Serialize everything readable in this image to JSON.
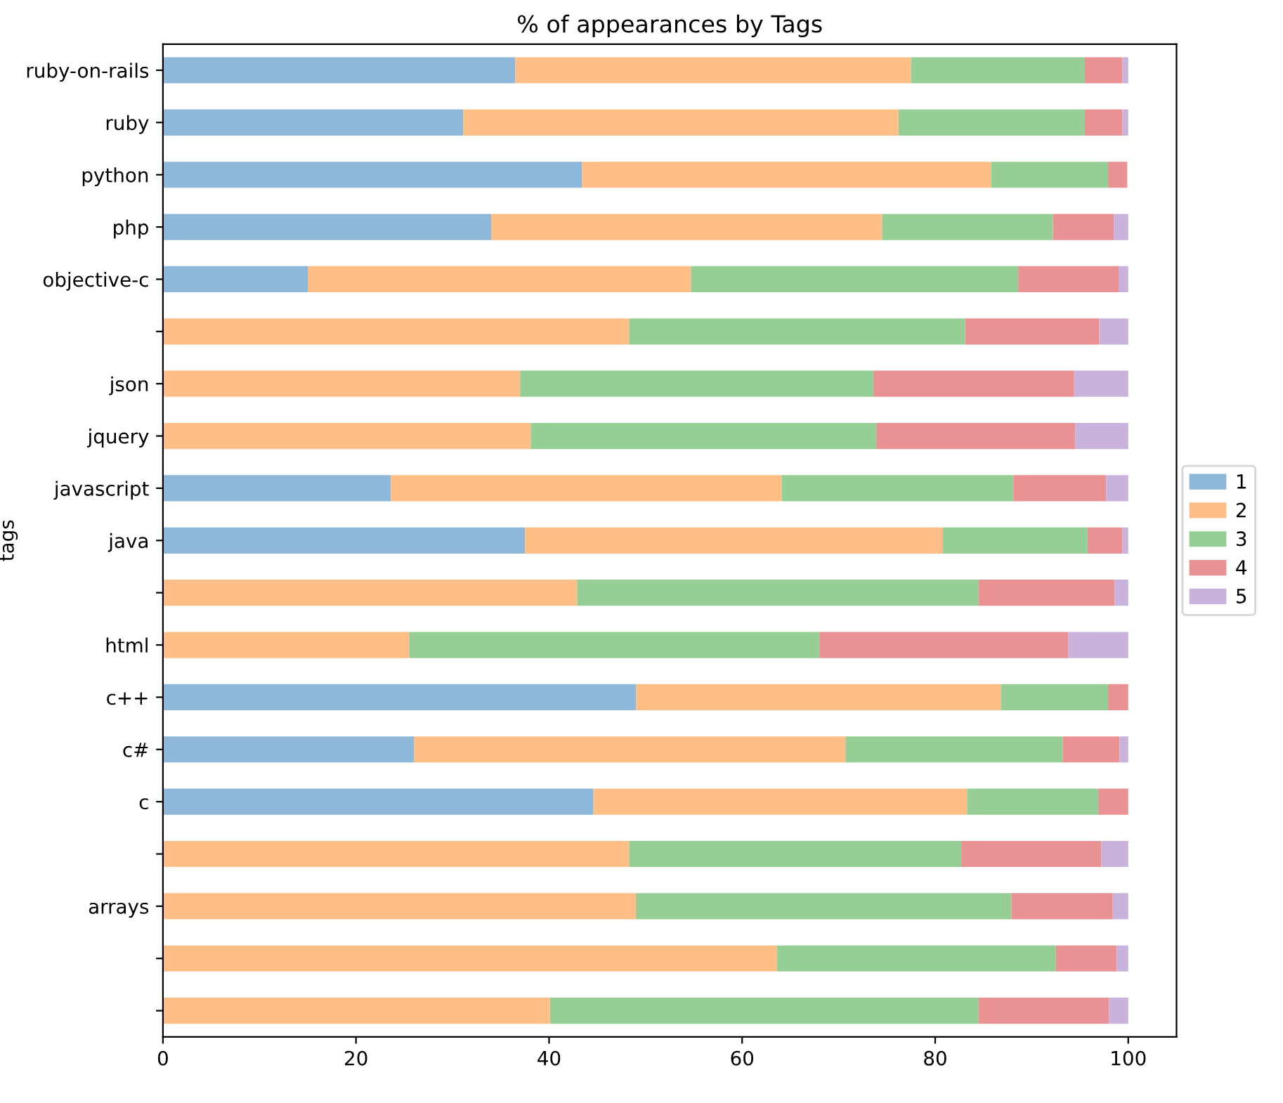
{
  "chart_data": {
    "type": "bar",
    "orientation": "horizontal",
    "stacked": true,
    "title": "% of appearances by Tags",
    "ylabel": "tags",
    "categories": [
      "ruby-on-rails",
      "ruby",
      "python",
      "php",
      "objective-c",
      null,
      "json",
      "jquery",
      "javascript",
      "java",
      null,
      "html",
      "c++",
      "c#",
      "c",
      null,
      "arrays",
      null,
      null
    ],
    "series": [
      {
        "name": "1",
        "color": "#8db8da",
        "values": [
          36.5,
          31.1,
          43.4,
          34.0,
          15.0,
          0,
          0,
          0,
          23.6,
          37.5,
          0,
          0,
          49.0,
          26.0,
          44.6,
          0,
          0,
          0,
          0
        ]
      },
      {
        "name": "2",
        "color": "#ffbe86",
        "values": [
          41.0,
          45.1,
          42.4,
          40.5,
          39.7,
          48.3,
          37.0,
          38.1,
          40.5,
          43.3,
          42.9,
          25.5,
          37.8,
          44.7,
          38.7,
          48.3,
          49.0,
          63.6,
          40.1
        ]
      },
      {
        "name": "3",
        "color": "#95cf95",
        "values": [
          18.0,
          19.3,
          12.1,
          17.7,
          33.9,
          34.8,
          36.6,
          35.8,
          24.0,
          15.0,
          41.6,
          42.5,
          11.1,
          22.5,
          13.6,
          34.4,
          38.9,
          28.9,
          44.4
        ]
      },
      {
        "name": "4",
        "color": "#ea9293",
        "values": [
          3.9,
          3.9,
          2.0,
          6.3,
          10.4,
          13.9,
          20.8,
          20.6,
          9.6,
          3.6,
          14.1,
          25.8,
          2.1,
          5.9,
          3.1,
          14.5,
          10.5,
          6.3,
          13.5
        ]
      },
      {
        "name": "5",
        "color": "#c9b3dd",
        "values": [
          0.6,
          0.6,
          null,
          1.5,
          1.0,
          3.0,
          5.6,
          5.5,
          2.3,
          0.6,
          1.4,
          6.2,
          0,
          0.9,
          0,
          2.8,
          1.6,
          1.2,
          2.0
        ]
      }
    ],
    "xlim": [
      0,
      105
    ],
    "xticks": [
      0,
      20,
      40,
      60,
      80,
      100
    ],
    "legend": "right",
    "grid": false
  }
}
